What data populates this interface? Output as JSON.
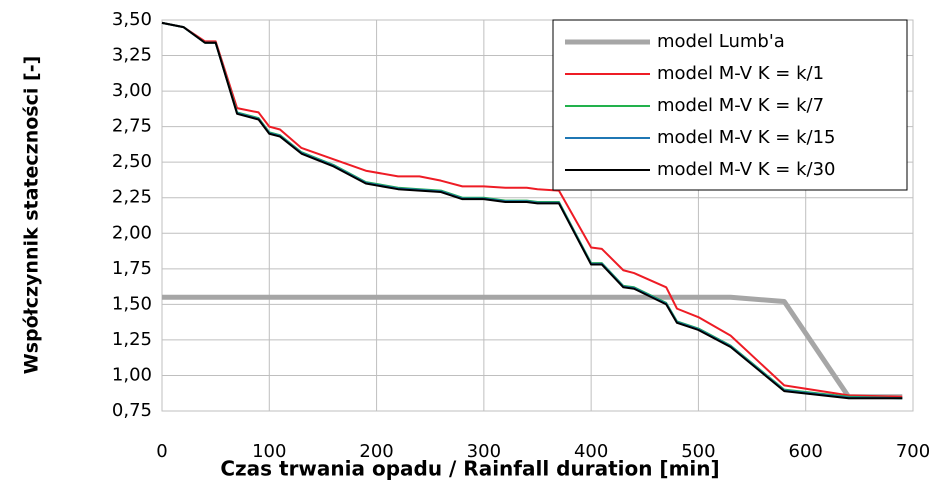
{
  "chart_data": {
    "type": "line",
    "xlabel": "Czas trwania opadu / Rainfall duration [min]",
    "ylabel": "Współczynnik stateczności [-]",
    "xlim": [
      0,
      700
    ],
    "xticks": [
      0,
      100,
      200,
      300,
      400,
      500,
      600,
      700
    ],
    "ylim": [
      0.75,
      3.5
    ],
    "yticks": [
      {
        "value": 0.75,
        "label": "0,75"
      },
      {
        "value": 1,
        "label": "1,00"
      },
      {
        "value": 1.25,
        "label": "1,25"
      },
      {
        "value": 1.5,
        "label": "1,50"
      },
      {
        "value": 1.75,
        "label": "1,75"
      },
      {
        "value": 2,
        "label": "2,00"
      },
      {
        "value": 2.25,
        "label": "2,25"
      },
      {
        "value": 2.5,
        "label": "2,50"
      },
      {
        "value": 2.75,
        "label": "2,75"
      },
      {
        "value": 3,
        "label": "3,00"
      },
      {
        "value": 3.25,
        "label": "3,25"
      },
      {
        "value": 3.5,
        "label": "3,50"
      }
    ],
    "grid": true,
    "legend": "upper right",
    "series": [
      {
        "name": "model Lumb'a",
        "color": "#a6a6a6",
        "width": 5,
        "x": [
          0,
          530,
          580,
          640,
          690
        ],
        "values": [
          1.55,
          1.55,
          1.52,
          0.85,
          0.85
        ]
      },
      {
        "name": "model M-V K = k/1",
        "color": "#ee1c25",
        "width": 2,
        "x": [
          0,
          20,
          40,
          50,
          70,
          90,
          100,
          110,
          130,
          160,
          190,
          220,
          240,
          260,
          280,
          300,
          320,
          340,
          350,
          370,
          400,
          410,
          430,
          440,
          470,
          480,
          500,
          530,
          580,
          640,
          690
        ],
        "values": [
          3.48,
          3.45,
          3.35,
          3.35,
          2.88,
          2.85,
          2.75,
          2.73,
          2.6,
          2.52,
          2.44,
          2.4,
          2.4,
          2.37,
          2.33,
          2.33,
          2.32,
          2.32,
          2.31,
          2.3,
          1.9,
          1.89,
          1.74,
          1.72,
          1.62,
          1.47,
          1.41,
          1.28,
          0.93,
          0.86,
          0.85
        ]
      },
      {
        "name": "model M-V K = k/7",
        "color": "#22b14c",
        "width": 2,
        "x": [
          0,
          20,
          40,
          50,
          70,
          90,
          100,
          110,
          130,
          160,
          190,
          220,
          240,
          260,
          280,
          300,
          320,
          340,
          350,
          370,
          400,
          410,
          430,
          440,
          470,
          480,
          500,
          530,
          580,
          640,
          690
        ],
        "values": [
          3.48,
          3.45,
          3.34,
          3.34,
          2.85,
          2.81,
          2.71,
          2.69,
          2.57,
          2.48,
          2.36,
          2.32,
          2.31,
          2.3,
          2.25,
          2.25,
          2.23,
          2.23,
          2.22,
          2.22,
          1.79,
          1.79,
          1.63,
          1.62,
          1.51,
          1.38,
          1.33,
          1.21,
          0.9,
          0.85,
          0.84
        ]
      },
      {
        "name": "model M-V K = k/15",
        "color": "#1f77b4",
        "width": 2,
        "x": [
          0,
          20,
          40,
          50,
          70,
          90,
          100,
          110,
          130,
          160,
          190,
          220,
          240,
          260,
          280,
          300,
          320,
          340,
          350,
          370,
          400,
          410,
          430,
          440,
          470,
          480,
          500,
          530,
          580,
          640,
          690
        ],
        "values": [
          3.48,
          3.45,
          3.34,
          3.34,
          2.845,
          2.805,
          2.705,
          2.685,
          2.565,
          2.475,
          2.355,
          2.315,
          2.305,
          2.295,
          2.245,
          2.245,
          2.225,
          2.225,
          2.215,
          2.215,
          1.785,
          1.785,
          1.625,
          1.615,
          1.505,
          1.375,
          1.325,
          1.205,
          0.895,
          0.845,
          0.84
        ]
      },
      {
        "name": "model M-V K = k/30",
        "color": "#000000",
        "width": 2,
        "x": [
          0,
          20,
          40,
          50,
          70,
          90,
          100,
          110,
          130,
          160,
          190,
          220,
          240,
          260,
          280,
          300,
          320,
          340,
          350,
          370,
          400,
          410,
          430,
          440,
          470,
          480,
          500,
          530,
          580,
          640,
          690
        ],
        "values": [
          3.48,
          3.45,
          3.34,
          3.34,
          2.84,
          2.8,
          2.7,
          2.68,
          2.56,
          2.47,
          2.35,
          2.31,
          2.3,
          2.29,
          2.24,
          2.24,
          2.22,
          2.22,
          2.21,
          2.21,
          1.78,
          1.78,
          1.62,
          1.61,
          1.5,
          1.37,
          1.32,
          1.2,
          0.89,
          0.84,
          0.84
        ]
      }
    ]
  }
}
